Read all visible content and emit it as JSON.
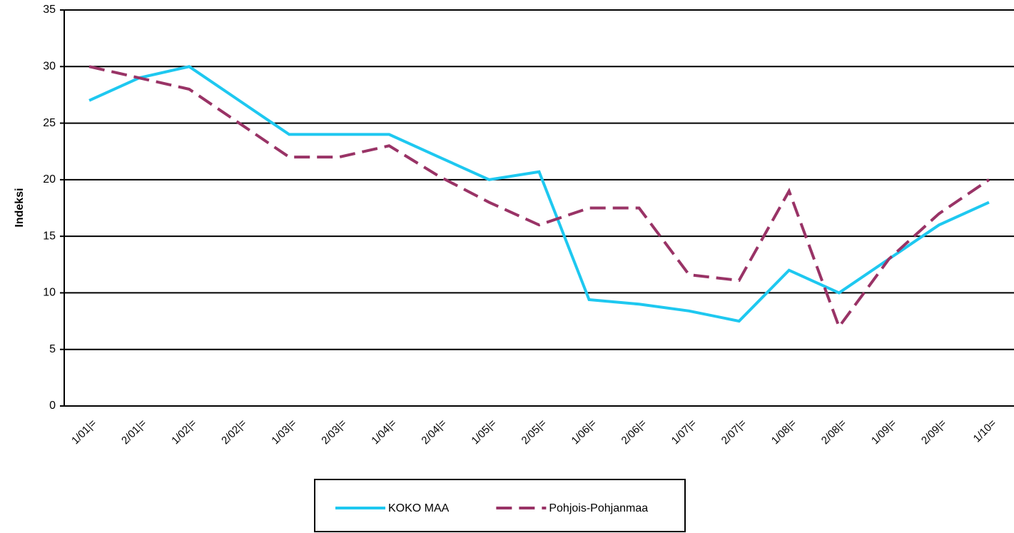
{
  "chart_data": {
    "type": "line",
    "y_label": "Indeksi",
    "categories": [
      "1/01|=",
      "2/01|=",
      "1/02|=",
      "2/02|=",
      "1/03|=",
      "2/03|=",
      "1/04|=",
      "2/04|=",
      "1/05|=",
      "2/05|=",
      "1/06|=",
      "2/06|=",
      "1/07|=",
      "2/07|=",
      "1/08|=",
      "2/08|=",
      "1/09|=",
      "2/09|=",
      "1/10="
    ],
    "series": [
      {
        "name": "KOKO MAA",
        "color": "#1ec8f0",
        "dash": false,
        "values": [
          27,
          29,
          30,
          27,
          24,
          24,
          24,
          22,
          20,
          20.7,
          9.4,
          9,
          8.4,
          7.5,
          12,
          10,
          13,
          16,
          18
        ]
      },
      {
        "name": "Pohjois-Pohjanmaa",
        "color": "#993366",
        "dash": true,
        "values": [
          30,
          29,
          28,
          25,
          22,
          22,
          23,
          20.3,
          18,
          16,
          17.5,
          17.5,
          11.6,
          11.1,
          19,
          7,
          13,
          17,
          20
        ]
      }
    ],
    "ylim": [
      0,
      35
    ],
    "yticks": [
      0,
      5,
      10,
      15,
      20,
      25,
      30,
      35
    ],
    "grid": true,
    "legend": "bottom"
  }
}
